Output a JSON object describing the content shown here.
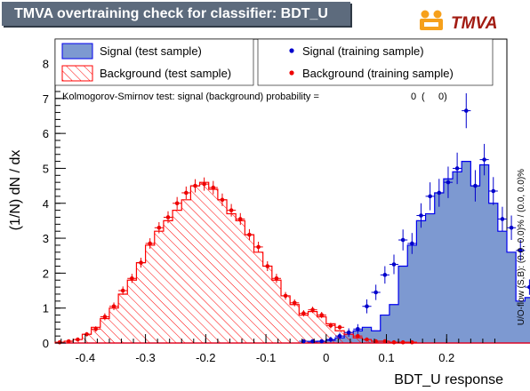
{
  "header": {
    "title": "TMVA overtraining check for classifier: BDT_U",
    "logo_text": "TMVA"
  },
  "chart_data": {
    "type": "histogram",
    "xlabel": "BDT_U response",
    "ylabel": "(1/N) dN / dx",
    "xlim": [
      -0.45,
      0.3
    ],
    "ylim": [
      0,
      8.7
    ],
    "bin_edges_start": -0.45,
    "bin_width": 0.015,
    "x_ticks": [
      "-0.4",
      "-0.3",
      "-0.2",
      "-0.1",
      "0",
      "0.1",
      "0.2"
    ],
    "x_tick_values": [
      -0.4,
      -0.3,
      -0.2,
      -0.1,
      0,
      0.1,
      0.2
    ],
    "y_ticks": [
      "0",
      "1",
      "2",
      "3",
      "4",
      "5",
      "6",
      "7",
      "8"
    ],
    "y_tick_values": [
      0,
      1,
      2,
      3,
      4,
      5,
      6,
      7,
      8
    ],
    "colors": {
      "signal_fill": "#7d99d1",
      "signal_line": "#0000ee",
      "background": "#ff0000",
      "signal_points": "#0000cc",
      "background_points": "#ee0000"
    },
    "series": [
      {
        "name": "Signal (test sample)",
        "style": "filled-histogram",
        "values": [
          0,
          0,
          0,
          0,
          0,
          0,
          0,
          0,
          0,
          0,
          0,
          0,
          0,
          0,
          0,
          0,
          0,
          0,
          0,
          0,
          0,
          0,
          0,
          0,
          0,
          0,
          0,
          0,
          0.02,
          0.05,
          0.08,
          0.15,
          0.25,
          0.35,
          0.45,
          0.35,
          0.8,
          1.1,
          2.2,
          2.8,
          3.5,
          3.7,
          4.3,
          4.7,
          4.9,
          5.2,
          4.5,
          5.1,
          4.0,
          3.2,
          2.6,
          1.2,
          1.3,
          0.5
        ]
      },
      {
        "name": "Background (test sample)",
        "style": "hatched-histogram",
        "values": [
          0.02,
          0.05,
          0.1,
          0.25,
          0.45,
          0.7,
          1.0,
          1.4,
          1.8,
          2.3,
          2.8,
          3.2,
          3.5,
          3.8,
          4.1,
          4.5,
          4.6,
          4.4,
          4.1,
          3.7,
          3.5,
          3.1,
          2.6,
          2.2,
          1.8,
          1.35,
          1.1,
          0.8,
          0.9,
          0.75,
          0.55,
          0.35,
          0.25,
          0.15,
          0.1,
          0.05,
          0.05,
          0.02,
          0.02,
          0.02,
          0,
          0,
          0,
          0,
          0,
          0,
          0,
          0,
          0,
          0,
          0,
          0,
          0,
          0
        ]
      },
      {
        "name": "Signal (training sample)",
        "style": "points",
        "values": [
          null,
          null,
          null,
          null,
          null,
          null,
          null,
          null,
          null,
          null,
          null,
          null,
          null,
          null,
          null,
          null,
          null,
          null,
          null,
          null,
          null,
          null,
          null,
          null,
          null,
          null,
          null,
          0.05,
          0.05,
          0.05,
          0.1,
          0.2,
          0.3,
          0.4,
          1.05,
          1.45,
          1.95,
          2.25,
          2.95,
          2.85,
          3.65,
          4.2,
          4.3,
          4.6,
          5.0,
          6.65,
          4.5,
          5.25,
          4.35,
          3.55,
          3.3,
          2.65,
          1.6,
          0.3
        ],
        "errors": [
          null,
          null,
          null,
          null,
          null,
          null,
          null,
          null,
          null,
          null,
          null,
          null,
          null,
          null,
          null,
          null,
          null,
          null,
          null,
          null,
          null,
          null,
          null,
          null,
          null,
          null,
          null,
          0.05,
          0.05,
          0.05,
          0.08,
          0.1,
          0.12,
          0.14,
          0.2,
          0.22,
          0.25,
          0.28,
          0.3,
          0.3,
          0.35,
          0.4,
          0.4,
          0.45,
          0.45,
          0.5,
          0.45,
          0.45,
          0.4,
          0.35,
          0.35,
          0.3,
          0.22,
          0.1
        ]
      },
      {
        "name": "Background (training sample)",
        "style": "points",
        "values": [
          0.02,
          0.05,
          0.1,
          0.25,
          0.4,
          0.75,
          1.05,
          1.5,
          1.85,
          2.3,
          2.85,
          3.3,
          3.6,
          4.0,
          4.3,
          4.5,
          4.55,
          4.45,
          4.1,
          3.8,
          3.55,
          3.1,
          2.75,
          2.2,
          1.85,
          1.35,
          1.15,
          0.85,
          0.95,
          0.8,
          0.5,
          0.45,
          0.3,
          0.2,
          0.1,
          0.05,
          0.05,
          0.02,
          0.02,
          0.02,
          null,
          null,
          null,
          null,
          null,
          null,
          null,
          null,
          null,
          null,
          null,
          null,
          null,
          null
        ],
        "errors": [
          0.02,
          0.03,
          0.04,
          0.06,
          0.08,
          0.1,
          0.11,
          0.12,
          0.13,
          0.14,
          0.15,
          0.16,
          0.17,
          0.18,
          0.18,
          0.19,
          0.19,
          0.19,
          0.18,
          0.18,
          0.17,
          0.16,
          0.15,
          0.14,
          0.13,
          0.11,
          0.1,
          0.09,
          0.09,
          0.09,
          0.08,
          0.07,
          0.06,
          0.05,
          0.04,
          0.03,
          0.03,
          0.02,
          0.02,
          0.02,
          null,
          null,
          null,
          null,
          null,
          null,
          null,
          null,
          null,
          null,
          null,
          null,
          null,
          null
        ]
      }
    ],
    "annotation": "Kolmogorov-Smirnov test: signal (background) probability =",
    "ks_signal": "0",
    "ks_open": "(",
    "ks_background": "0)",
    "side_label": "U/O-flow (S,B): (0.0, 0.0)% / (0.0, 0.0)%"
  }
}
